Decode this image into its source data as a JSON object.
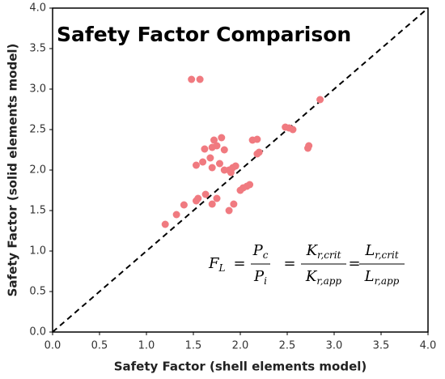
{
  "chart_data": {
    "type": "scatter",
    "title": "Safety Factor Comparison",
    "xlabel": "Safety Factor (shell elements model)",
    "ylabel": "Safety Factor (solid elements model)",
    "xlim": [
      0,
      4
    ],
    "ylim": [
      0,
      4
    ],
    "xticks": [
      {
        "value": 0,
        "label": "0.0"
      },
      {
        "value": 0.5,
        "label": "0.5"
      },
      {
        "value": 1,
        "label": "1.0"
      },
      {
        "value": 1.5,
        "label": "1.5"
      },
      {
        "value": 2,
        "label": "2.0"
      },
      {
        "value": 2.5,
        "label": "2.5"
      },
      {
        "value": 3,
        "label": "3.0"
      },
      {
        "value": 3.5,
        "label": "3.5"
      },
      {
        "value": 4,
        "label": "4.0"
      }
    ],
    "yticks": [
      {
        "value": 0,
        "label": "0.0"
      },
      {
        "value": 0.5,
        "label": "0.5"
      },
      {
        "value": 1,
        "label": "1.0"
      },
      {
        "value": 1.5,
        "label": "1.5"
      },
      {
        "value": 2,
        "label": "2.0"
      },
      {
        "value": 2.5,
        "label": "2.5"
      },
      {
        "value": 3,
        "label": "3.0"
      },
      {
        "value": 3.5,
        "label": "3.5"
      },
      {
        "value": 4,
        "label": "4.0"
      }
    ],
    "color": "#f07a80",
    "grid": false,
    "x": [
      1.48,
      1.57,
      2.85,
      2.48,
      2.52,
      2.56,
      2.73,
      2.72,
      2.13,
      2.18,
      2.18,
      2.2,
      1.8,
      1.72,
      1.75,
      1.62,
      1.7,
      1.83,
      1.68,
      1.6,
      1.53,
      1.7,
      1.78,
      1.83,
      1.88,
      1.92,
      1.95,
      1.9,
      2.0,
      2.03,
      2.1,
      2.07,
      1.53,
      1.55,
      1.63,
      1.75,
      1.7,
      1.88,
      1.93,
      1.4,
      1.32,
      1.2
    ],
    "y": [
      3.12,
      3.12,
      2.87,
      2.53,
      2.52,
      2.5,
      2.3,
      2.27,
      2.37,
      2.38,
      2.2,
      2.22,
      2.4,
      2.37,
      2.3,
      2.26,
      2.28,
      2.25,
      2.15,
      2.1,
      2.06,
      2.03,
      2.08,
      2.0,
      2.0,
      2.03,
      2.05,
      1.97,
      1.75,
      1.78,
      1.82,
      1.8,
      1.62,
      1.65,
      1.7,
      1.65,
      1.58,
      1.5,
      1.58,
      1.57,
      1.45,
      1.33
    ],
    "annotation": {
      "lhs": {
        "base": "F",
        "sub": "L"
      },
      "operator": "=",
      "fractions": [
        {
          "num": {
            "base": "P",
            "sub": "c"
          },
          "den": {
            "base": "P",
            "sub": "i"
          }
        },
        {
          "num": {
            "base": "K",
            "sub": "r,crit"
          },
          "den": {
            "base": "K",
            "sub": "r,app"
          }
        },
        {
          "num": {
            "base": "L",
            "sub": "r,crit"
          },
          "den": {
            "base": "L",
            "sub": "r,app"
          }
        }
      ]
    }
  }
}
